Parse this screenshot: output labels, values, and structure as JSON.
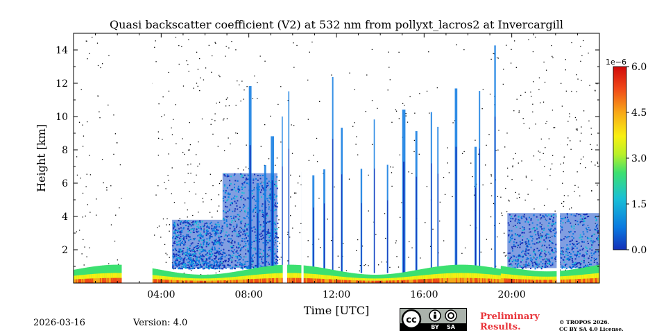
{
  "chart_data": {
    "type": "heatmap",
    "title": "Quasi backscatter coefficient (V2) at 532 nm from pollyxt_lacros2 at Invercargill",
    "xlabel": "Time [UTC]",
    "ylabel": "Height [km]",
    "xlim_hours": [
      0,
      24
    ],
    "ylim_km": [
      0,
      15
    ],
    "x_ticks": [
      {
        "value": 4,
        "label": "04:00"
      },
      {
        "value": 8,
        "label": "08:00"
      },
      {
        "value": 12,
        "label": "12:00"
      },
      {
        "value": 16,
        "label": "16:00"
      },
      {
        "value": 20,
        "label": "20:00"
      }
    ],
    "y_ticks": [
      {
        "value": 2,
        "label": "2"
      },
      {
        "value": 4,
        "label": "4"
      },
      {
        "value": 6,
        "label": "6"
      },
      {
        "value": 8,
        "label": "8"
      },
      {
        "value": 10,
        "label": "10"
      },
      {
        "value": 12,
        "label": "12"
      },
      {
        "value": 14,
        "label": "14"
      }
    ],
    "colorbar": {
      "range": [
        0.0,
        6.0
      ],
      "exponent_label": "1e−6",
      "ticks": [
        {
          "value": 0.0,
          "label": "0.0"
        },
        {
          "value": 1.5,
          "label": "1.5"
        },
        {
          "value": 3.0,
          "label": "3.0"
        },
        {
          "value": 4.5,
          "label": "4.5"
        },
        {
          "value": 6.0,
          "label": "6.0"
        }
      ],
      "colormap": [
        "#1430b8",
        "#0a78e0",
        "#19c0d6",
        "#3ce070",
        "#b8f028",
        "#f8f010",
        "#f8a818",
        "#f04818",
        "#d00a0a"
      ]
    },
    "features": {
      "cloud_columns_hours": [
        8.0,
        8.35,
        8.7,
        9.0,
        9.5,
        9.8,
        10.4,
        10.9,
        11.4,
        11.8,
        12.2,
        13.1,
        13.7,
        14.3,
        15.0,
        15.6,
        16.3,
        16.6,
        17.4,
        18.3,
        18.5,
        19.2
      ],
      "aerosol_blocks": [
        {
          "start_h": 4.5,
          "end_h": 6.8,
          "top_km": 3.8
        },
        {
          "start_h": 6.8,
          "end_h": 9.3,
          "top_km": 6.6
        },
        {
          "start_h": 19.8,
          "end_h": 24.0,
          "top_km": 4.2
        }
      ],
      "data_gaps_hours": [
        [
          2.2,
          3.6
        ],
        [
          9.55,
          9.75
        ],
        [
          10.4,
          10.5
        ],
        [
          22.05,
          22.2
        ]
      ]
    }
  },
  "footer": {
    "date": "2026-03-16",
    "version": "Version: 4.0",
    "license_badge": "cc-by-sa-icon",
    "license_by": "BY",
    "license_sa": "SA",
    "preliminary_line1": "Preliminary",
    "preliminary_line2": "Results.",
    "copyright_line1": "© TROPOS 2026.",
    "copyright_line2": "CC BY SA 4.0 License."
  }
}
